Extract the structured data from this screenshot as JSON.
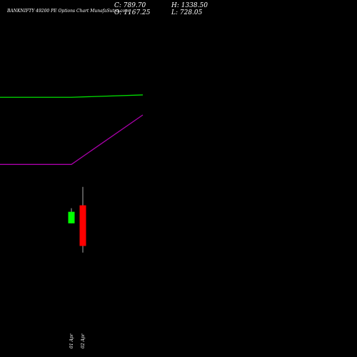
{
  "header": {
    "title": "BANKNIFTY 49200  PE Options  Chart MunafaSutra.com",
    "close": "C: 789.70",
    "high": "H: 1338.50",
    "open": "O: 1167.25",
    "low": "L: 728.05"
  },
  "chart_data": {
    "type": "candlestick",
    "title": "BANKNIFTY 49200  PE Options  Chart MunafaSutra.com",
    "candles": [
      {
        "label": "01 Apr",
        "open": 1107,
        "high": 1140,
        "low": 1000,
        "close": 1000,
        "color": "#00ff00"
      },
      {
        "label": "02 Apr",
        "open": 1167.25,
        "high": 1338.5,
        "low": 728.05,
        "close": 789.7,
        "color": "#ff0000"
      }
    ],
    "overlay_lines": [
      {
        "color": "#00dd00",
        "points": [
          [
            0,
            0.75
          ],
          [
            100,
            0.75
          ],
          [
            200,
            0.77
          ]
        ]
      },
      {
        "color": "#aa00aa",
        "points": [
          [
            0,
            0.18
          ],
          [
            100,
            0.18
          ],
          [
            200,
            0.6
          ]
        ]
      }
    ],
    "colors": {
      "background": "#000000",
      "bull": "#00ff00",
      "bear": "#ff0000",
      "wick": "#aaaaaa"
    }
  }
}
